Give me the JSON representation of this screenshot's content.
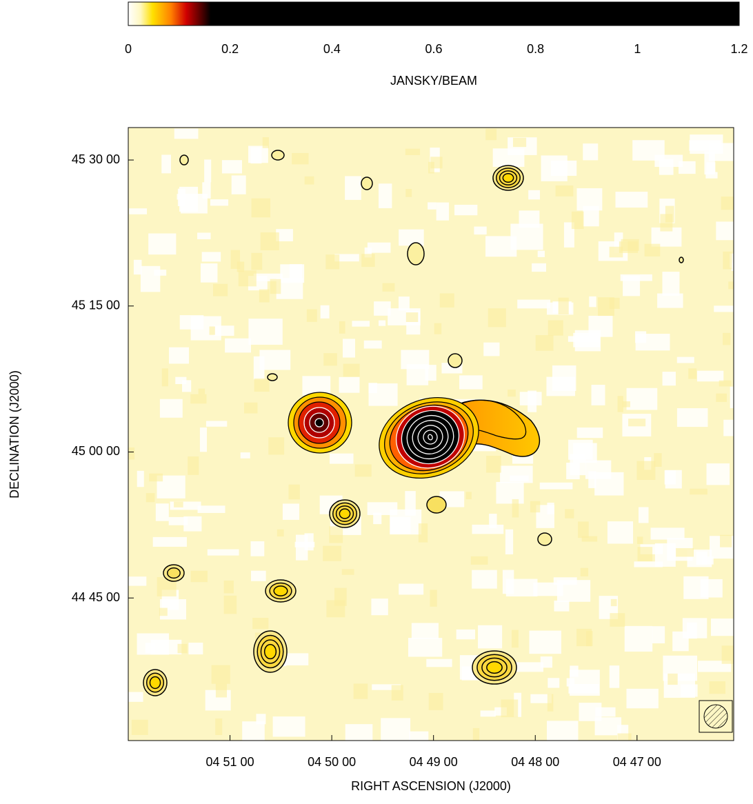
{
  "chart_data": {
    "type": "image",
    "colorbar": {
      "label": "JANSKY/BEAM",
      "lim": [
        0,
        1.2
      ],
      "ticks": [
        0,
        0.2,
        0.4,
        0.6,
        0.8,
        1,
        1.2
      ]
    },
    "xlabel": "RIGHT ASCENSION  (J2000)",
    "ylabel": "DECLINATION  (J2000)",
    "xlim": [
      17520,
      17163
    ],
    "ylim": [
      160221,
      164000
    ],
    "xticks": [
      {
        "value": 17460,
        "label": "04 51 00"
      },
      {
        "value": 17400,
        "label": "04 50 00"
      },
      {
        "value": 17340,
        "label": "04 49 00"
      },
      {
        "value": 17280,
        "label": "04 48 00"
      },
      {
        "value": 17220,
        "label": "04 47 00"
      }
    ],
    "yticks": [
      {
        "value": 163800,
        "label": "45 30 00"
      },
      {
        "value": 162900,
        "label": "45 15 00"
      },
      {
        "value": 162000,
        "label": "45 00 00"
      },
      {
        "value": 161100,
        "label": "44 45 00"
      }
    ]
  }
}
